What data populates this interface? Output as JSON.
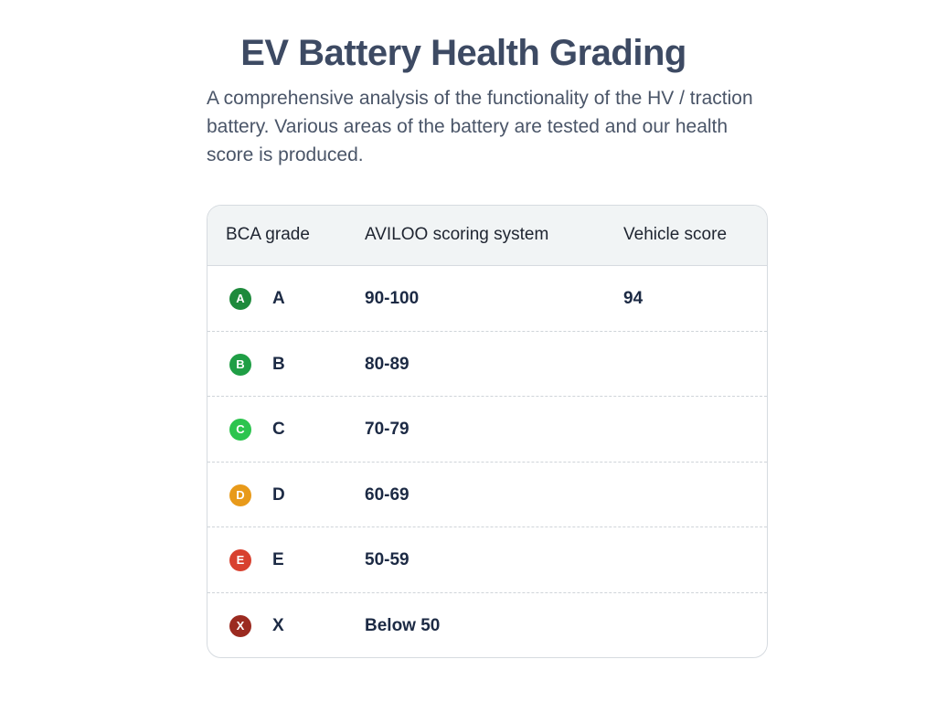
{
  "header": {
    "title": "EV Battery Health Grading",
    "description": "A comprehensive analysis of the functionality of the HV / traction battery. Various areas of the battery are tested and our health score is produced."
  },
  "table": {
    "columns": [
      "BCA grade",
      "AVILOO scoring system",
      "Vehicle score"
    ],
    "rows": [
      {
        "badge": "A",
        "grade": "A",
        "range": "90-100",
        "score": "94",
        "color": "#1e8a3c"
      },
      {
        "badge": "B",
        "grade": "B",
        "range": "80-89",
        "score": "",
        "color": "#1f9e45"
      },
      {
        "badge": "C",
        "grade": "C",
        "range": "70-79",
        "score": "",
        "color": "#2cc44e"
      },
      {
        "badge": "D",
        "grade": "D",
        "range": "60-69",
        "score": "",
        "color": "#e89a1a"
      },
      {
        "badge": "E",
        "grade": "E",
        "range": "50-59",
        "score": "",
        "color": "#d8412f"
      },
      {
        "badge": "X",
        "grade": "X",
        "range": "Below 50",
        "score": "",
        "color": "#9b2a20"
      }
    ]
  }
}
